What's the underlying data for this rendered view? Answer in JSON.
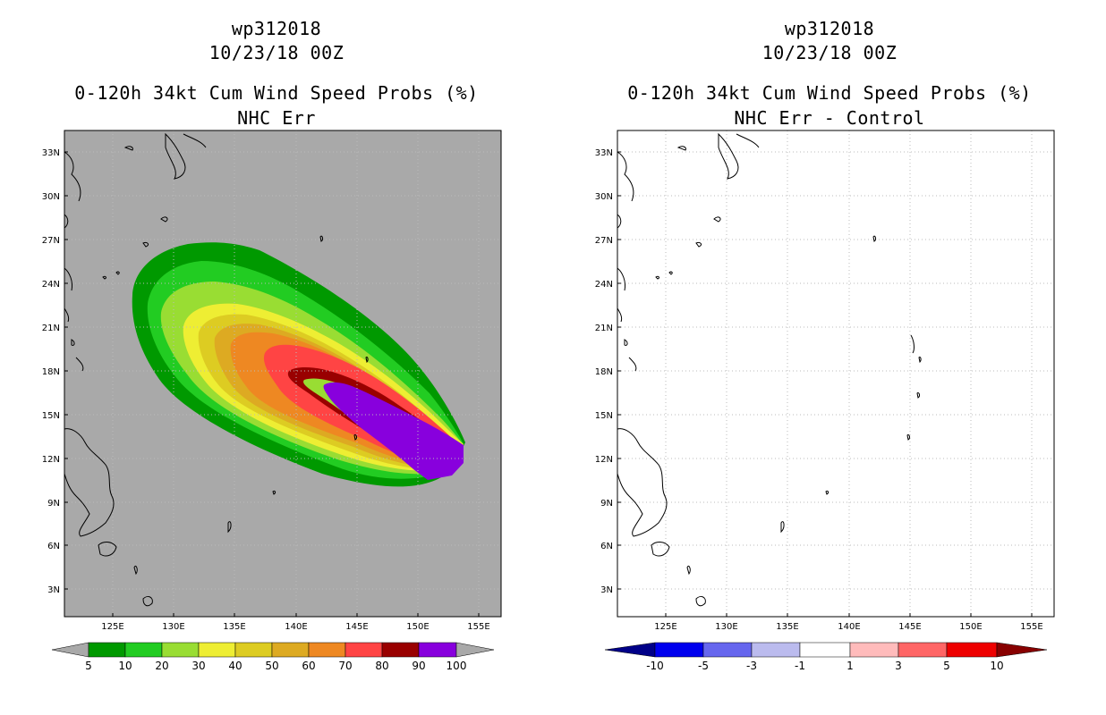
{
  "panels": {
    "left": {
      "storm_id": "wp312018",
      "datetime": "10/23/18 00Z",
      "title": "0-120h 34kt Cum Wind Speed Probs (%)",
      "subtitle": "NHC Err",
      "colorbar": {
        "labels": [
          "5",
          "10",
          "20",
          "30",
          "40",
          "50",
          "60",
          "70",
          "80",
          "90",
          "100"
        ],
        "colors": [
          "#009900",
          "#22cc22",
          "#99dd33",
          "#eeee33",
          "#ddcc22",
          "#ddaa22",
          "#ee8822",
          "#ff4444",
          "#990000",
          "#8800dd"
        ]
      }
    },
    "right": {
      "storm_id": "wp312018",
      "datetime": "10/23/18 00Z",
      "title": "0-120h 34kt Cum Wind Speed Probs (%)",
      "subtitle": "NHC Err - Control",
      "colorbar": {
        "labels": [
          "-10",
          "-5",
          "-3",
          "-1",
          "1",
          "3",
          "5",
          "10"
        ],
        "colors": [
          "#000088",
          "#0000ee",
          "#6666ee",
          "#bbbbee",
          "#ffffff",
          "#ffbbbb",
          "#ff6666",
          "#ee0000",
          "#880000"
        ]
      }
    }
  },
  "axes": {
    "lat_labels": [
      "33N",
      "30N",
      "27N",
      "24N",
      "21N",
      "18N",
      "15N",
      "12N",
      "9N",
      "6N",
      "3N"
    ],
    "lon_labels": [
      "125E",
      "130E",
      "135E",
      "140E",
      "145E",
      "150E",
      "155E"
    ]
  },
  "colors": {
    "ocean_gray": "#a9a9a9",
    "grid": "#bbbbbb"
  }
}
